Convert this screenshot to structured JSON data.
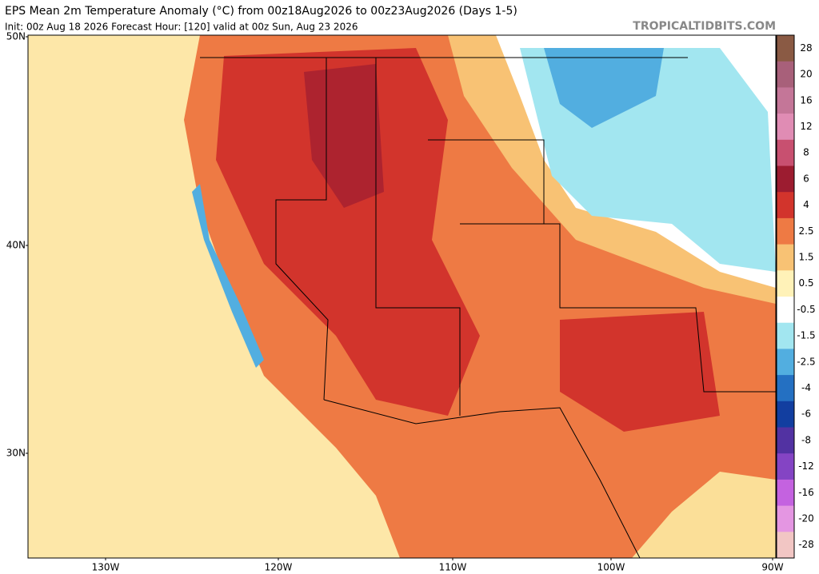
{
  "header": {
    "title": "EPS Mean 2m Temperature Anomaly (°C) from 00z18Aug2026 to 00z23Aug2026 (Days 1-5)",
    "subtitle": "Init: 00z Aug 18 2026   Forecast Hour: [120]   valid at 00z Sun, Aug 23 2026",
    "site": "TROPICALTIDBITS.COM"
  },
  "map": {
    "lat_labels": [
      "50N",
      "40N",
      "30N"
    ],
    "lon_labels": [
      "130W",
      "120W",
      "110W",
      "100W",
      "90W"
    ]
  },
  "colorbar": [
    {
      "label": "28",
      "color": "#8a5a44"
    },
    {
      "label": "20",
      "color": "#a8607a"
    },
    {
      "label": "16",
      "color": "#c47698"
    },
    {
      "label": "12",
      "color": "#e08cb4"
    },
    {
      "label": "8",
      "color": "#c85070"
    },
    {
      "label": "6",
      "color": "#9c1c30"
    },
    {
      "label": "4",
      "color": "#d2342c"
    },
    {
      "label": "2.5",
      "color": "#ee7a44"
    },
    {
      "label": "1.5",
      "color": "#f8c274"
    },
    {
      "label": "0.5",
      "color": "#fff2b8"
    },
    {
      "label": "-0.5",
      "color": "#ffffff"
    },
    {
      "label": "-1.5",
      "color": "#a2e6f0"
    },
    {
      "label": "-2.5",
      "color": "#52aee0"
    },
    {
      "label": "-4",
      "color": "#2470c2"
    },
    {
      "label": "-6",
      "color": "#123ea0"
    },
    {
      "label": "-8",
      "color": "#5232a2"
    },
    {
      "label": "-12",
      "color": "#8444c4"
    },
    {
      "label": "-16",
      "color": "#c462e0"
    },
    {
      "label": "-20",
      "color": "#e496e2"
    },
    {
      "label": "-28",
      "color": "#f2c6c4"
    }
  ]
}
